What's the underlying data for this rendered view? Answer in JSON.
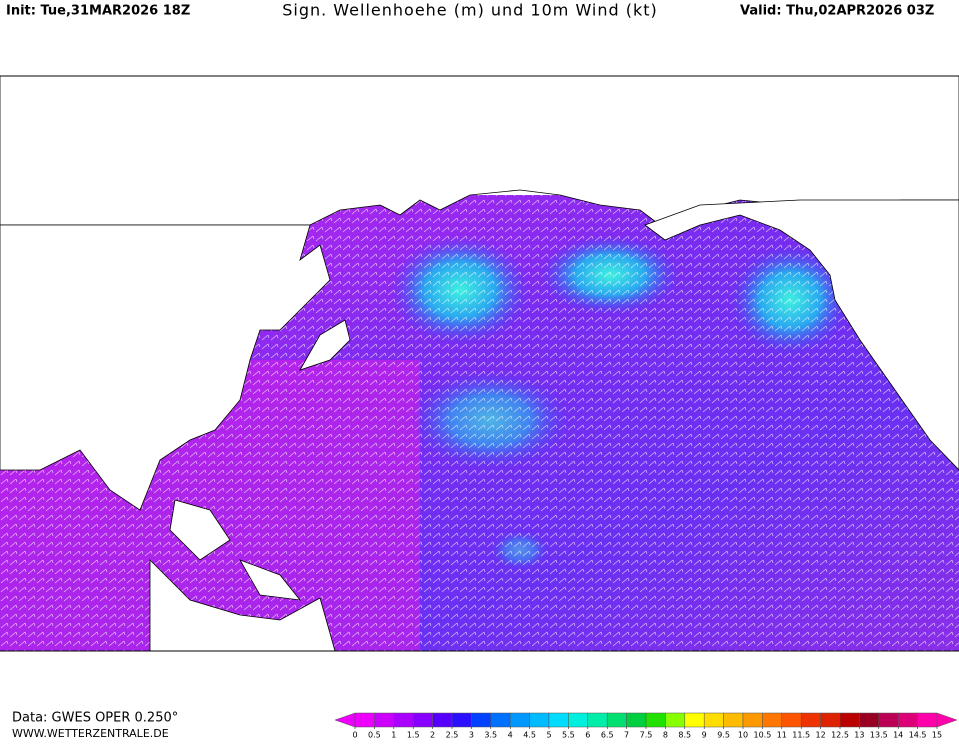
{
  "header": {
    "init": "Init: Tue,31MAR2026 18Z",
    "title": "Sign. Wellenhoehe (m) und 10m Wind (kt)",
    "valid": "Valid: Thu,02APR2026 03Z"
  },
  "footer": {
    "data_source": "Data: GWES OPER 0.250°",
    "website": "WWW.WETTERZENTRALE.DE"
  },
  "colorbar": {
    "ticks": [
      0,
      0.5,
      1,
      1.5,
      2,
      2.5,
      3,
      3.5,
      4,
      4.5,
      5,
      5.5,
      6,
      6.5,
      7,
      7.5,
      8,
      8.5,
      9,
      9.5,
      10,
      10.5,
      11,
      11.5,
      12,
      12.5,
      13,
      13.5,
      14,
      14.5,
      15
    ],
    "colors": [
      "#ee00ff",
      "#cc00ff",
      "#aa00ff",
      "#8800ff",
      "#5500ff",
      "#2a10ff",
      "#0040ff",
      "#0070ff",
      "#0098ff",
      "#00bbff",
      "#00ddff",
      "#00f0dd",
      "#00eeaa",
      "#00e070",
      "#00d040",
      "#22e000",
      "#88ff00",
      "#ffff00",
      "#ffdd00",
      "#ffbb00",
      "#ff9900",
      "#ff7700",
      "#ff5500",
      "#ee3300",
      "#dd2200",
      "#bb0000",
      "#990022",
      "#bb0055",
      "#dd0077",
      "#ff00aa"
    ]
  }
}
